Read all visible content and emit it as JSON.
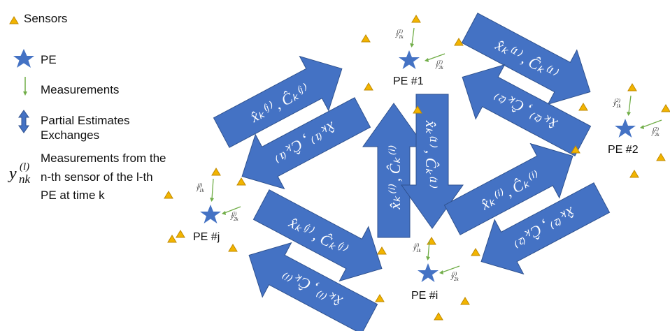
{
  "colors": {
    "arrow_fill": "#4472C4",
    "arrow_stroke": "#2F528F",
    "star": "#4472C4",
    "sensor": "#F2B400",
    "sensor_stroke": "#C08A00",
    "measurement": "#70AD47",
    "text": "#111111"
  },
  "legend": {
    "sensors_label": "Sensors",
    "pe_label": "PE",
    "measurements_label": "Measurements",
    "exchanges_label_line1": "Partial Estimates",
    "exchanges_label_line2": "Exchanges",
    "notation_symbol_base": "y",
    "notation_symbol_sub": "nk",
    "notation_symbol_sup": "(l)",
    "notation_line1": "Measurements from the",
    "notation_line2": "n-th sensor of the l-th",
    "notation_line3": "PE at time k"
  },
  "nodes": {
    "pe1": {
      "label": "PE #1",
      "m1": "y",
      "m1_sub": "1k",
      "m1_sup": "(1)",
      "m2": "y",
      "m2_sub": "2k",
      "m2_sup": "(1)"
    },
    "pe2": {
      "label": "PE #2",
      "m1": "y",
      "m1_sub": "1k",
      "m1_sup": "(2)",
      "m2": "y",
      "m2_sub": "2k",
      "m2_sup": "(2)"
    },
    "pej": {
      "label": "PE #j",
      "m1": "y",
      "m1_sub": "1k",
      "m1_sup": "(j)",
      "m2": "y",
      "m2_sub": "2k",
      "m2_sup": "(j)"
    },
    "pei": {
      "label": "PE #i",
      "m1": "y",
      "m1_sub": "1k",
      "m1_sup": "(i)",
      "m2": "y",
      "m2_sub": "2k",
      "m2_sup": "(i)"
    }
  },
  "exchanges": {
    "e1_to_2": "x̂ₖ⁽¹⁾ , Ĉₖ⁽¹⁾",
    "e2_to_1": "x̂ₖ⁽²⁾ , Ĉₖ⁽²⁾",
    "ej_to_1": "x̂ₖ⁽ʲ⁾ , Ĉₖ⁽ʲ⁾",
    "e1_to_j": "x̂ₖ⁽¹⁾ , Ĉₖ⁽¹⁾",
    "ei_to_1": "x̂ₖ⁽ⁱ⁾ , Ĉₖ⁽ⁱ⁾",
    "e1_to_i": "x̂ₖ⁽¹⁾ , Ĉₖ⁽¹⁾",
    "ei_to_2": "x̂ₖ⁽ⁱ⁾ , Ĉₖ⁽ⁱ⁾",
    "e2_to_i": "x̂ₖ⁽²⁾ , Ĉₖ⁽²⁾",
    "ej_to_i": "x̂ₖ⁽ʲ⁾ , Ĉₖ⁽ʲ⁾",
    "ei_to_j": "x̂ₖ⁽ⁱ⁾ , Ĉₖ⁽ⁱ⁾"
  }
}
